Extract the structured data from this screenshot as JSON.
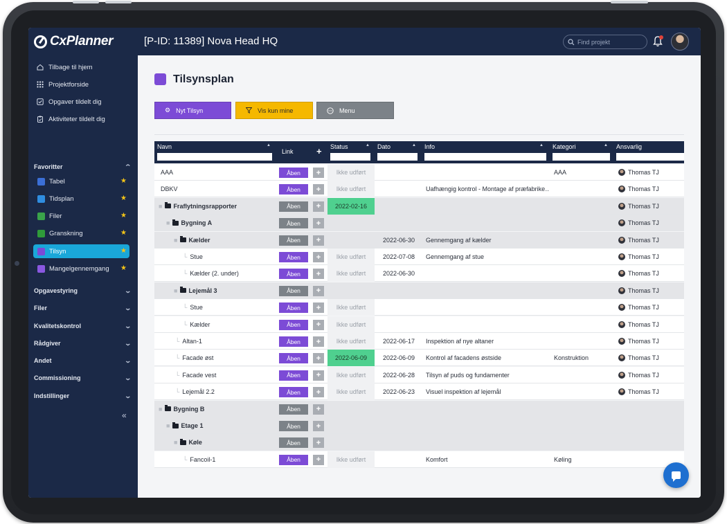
{
  "app": {
    "logo": "CxPlanner",
    "project_title": "[P-ID: 11389] Nova Head HQ"
  },
  "search": {
    "placeholder": "Find projekt"
  },
  "sidebar": {
    "nav": [
      {
        "label": "Tilbage til hjem",
        "icon": "home-icon"
      },
      {
        "label": "Projektforside",
        "icon": "grid-icon"
      },
      {
        "label": "Opgaver tildelt dig",
        "icon": "checkbox-icon"
      },
      {
        "label": "Aktiviteter tildelt dig",
        "icon": "clipboard-icon"
      }
    ],
    "favorites_label": "Favoritter",
    "favorites": [
      {
        "label": "Tabel",
        "color": "#3b6fd6"
      },
      {
        "label": "Tidsplan",
        "color": "#2f8de0"
      },
      {
        "label": "Filer",
        "color": "#3aa34a"
      },
      {
        "label": "Granskning",
        "color": "#2f9b3a"
      },
      {
        "label": "Tilsyn",
        "color": "#7c4bd6"
      },
      {
        "label": "Mangelgennemgang",
        "color": "#8a58e0"
      }
    ],
    "sections": [
      "Opgavestyring",
      "Filer",
      "Kvalitetskontrol",
      "Rådgiver",
      "Andet",
      "Commissioning",
      "Indstillinger"
    ],
    "collapse": "«"
  },
  "page": {
    "title": "Tilsynsplan"
  },
  "actions": {
    "new": "Nyt Tilsyn",
    "filter": "Vis kun mine",
    "menu": "Menu"
  },
  "table": {
    "headers": {
      "name": "Navn",
      "link": "Link",
      "add": "+",
      "status": "Status",
      "date": "Dato",
      "info": "Info",
      "category": "Kategori",
      "responsible": "Ansvarlig"
    },
    "rows": [
      {
        "name": "AAA",
        "depth": 0,
        "type": "item",
        "link": "Åben",
        "status": "Ikke udført",
        "date": "",
        "info": "",
        "category": "AAA",
        "responsible": "Thomas TJ"
      },
      {
        "name": "DBKV",
        "depth": 0,
        "type": "item",
        "link": "Åben",
        "status": "Ikke udført",
        "date": "",
        "info": "Uafhængig kontrol - Montage af præfabrike…",
        "category": "",
        "responsible": "Thomas TJ"
      },
      {
        "name": "Fraflytningsrapporter",
        "depth": 0,
        "type": "group",
        "link": "Åben",
        "status": "2022-02-16",
        "date": "",
        "info": "",
        "category": "",
        "responsible": "Thomas TJ"
      },
      {
        "name": "Bygning A",
        "depth": 1,
        "type": "group",
        "link": "Åben",
        "status": "",
        "date": "",
        "info": "",
        "category": "",
        "responsible": "Thomas TJ"
      },
      {
        "name": "Kælder",
        "depth": 2,
        "type": "group",
        "link": "Åben",
        "status": "",
        "date": "2022-06-30",
        "info": "Gennemgang af kælder",
        "category": "",
        "responsible": "Thomas TJ"
      },
      {
        "name": "Stue",
        "depth": 3,
        "type": "item",
        "link": "Åben",
        "status": "Ikke udført",
        "date": "2022-07-08",
        "info": "Gennemgang af stue",
        "category": "",
        "responsible": "Thomas TJ"
      },
      {
        "name": "Kælder (2. under)",
        "depth": 3,
        "type": "item",
        "link": "Åben",
        "status": "Ikke udført",
        "date": "2022-06-30",
        "info": "",
        "category": "",
        "responsible": "Thomas TJ"
      },
      {
        "name": "Lejemål 3",
        "depth": 2,
        "type": "group",
        "link": "Åben",
        "status": "",
        "date": "",
        "info": "",
        "category": "",
        "responsible": "Thomas TJ"
      },
      {
        "name": "Stue",
        "depth": 3,
        "type": "item",
        "link": "Åben",
        "status": "Ikke udført",
        "date": "",
        "info": "",
        "category": "",
        "responsible": "Thomas TJ"
      },
      {
        "name": "Kælder",
        "depth": 3,
        "type": "item",
        "link": "Åben",
        "status": "Ikke udført",
        "date": "",
        "info": "",
        "category": "",
        "responsible": "Thomas TJ"
      },
      {
        "name": "Altan-1",
        "depth": 2,
        "type": "item",
        "link": "Åben",
        "status": "Ikke udført",
        "date": "2022-06-17",
        "info": "Inspektion af nye altaner",
        "category": "",
        "responsible": "Thomas TJ"
      },
      {
        "name": "Facade øst",
        "depth": 2,
        "type": "item",
        "link": "Åben",
        "status": "2022-06-09",
        "date": "2022-06-09",
        "info": "Kontrol af facadens østside",
        "category": "Konstruktion",
        "responsible": "Thomas TJ"
      },
      {
        "name": "Facade vest",
        "depth": 2,
        "type": "item",
        "link": "Åben",
        "status": "Ikke udført",
        "date": "2022-06-28",
        "info": "Tilsyn af puds og fundamenter",
        "category": "",
        "responsible": "Thomas TJ"
      },
      {
        "name": "Lejemål 2.2",
        "depth": 2,
        "type": "item",
        "link": "Åben",
        "status": "Ikke udført",
        "date": "2022-06-23",
        "info": "Visuel inspektion af lejemål",
        "category": "",
        "responsible": "Thomas TJ"
      },
      {
        "name": "Bygning B",
        "depth": 0,
        "type": "group",
        "link": "Åben",
        "status": "",
        "date": "",
        "info": "",
        "category": "",
        "responsible": ""
      },
      {
        "name": "Etage 1",
        "depth": 1,
        "type": "group",
        "link": "Åben",
        "status": "",
        "date": "",
        "info": "",
        "category": "",
        "responsible": ""
      },
      {
        "name": "Køle",
        "depth": 2,
        "type": "group",
        "link": "Åben",
        "status": "",
        "date": "",
        "info": "",
        "category": "",
        "responsible": ""
      },
      {
        "name": "Fancoil-1",
        "depth": 3,
        "type": "item",
        "link": "Åben",
        "status": "Ikke udført",
        "date": "",
        "info": "Komfort",
        "category": "Køling",
        "responsible": ""
      }
    ]
  }
}
